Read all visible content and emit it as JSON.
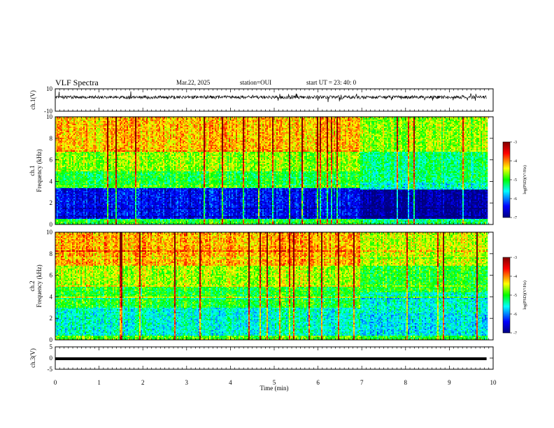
{
  "header": {
    "title": "VLF Spectra",
    "date": "Mar.22, 2025",
    "station": "station=OUI",
    "start": "start UT =  23: 40: 0"
  },
  "chart_data": [
    {
      "type": "line",
      "panel": "ch1-waveform",
      "ylabel": "ch.1(V)",
      "ylim": [
        -10,
        10
      ],
      "yticks": [
        "10",
        "-10"
      ],
      "xlim": [
        0,
        10
      ],
      "baseline": 2.5
    },
    {
      "type": "heatmap",
      "panel": "ch1-spectrogram",
      "ylabel": "ch.1\nFrequency (kHz)",
      "ylim": [
        0,
        10
      ],
      "yticks": [
        "0",
        "2",
        "4",
        "6",
        "8",
        "10"
      ],
      "xlim": [
        0,
        10
      ],
      "data_end_min": 9.85,
      "colorbar": {
        "label": "log(PSD)(V²/Hz)",
        "range": [
          -7,
          -3
        ],
        "ticks": [
          "-3",
          "-4",
          "-5",
          "-6",
          "-7"
        ]
      }
    },
    {
      "type": "heatmap",
      "panel": "ch2-spectrogram",
      "ylabel": "ch.2\nFrequency (kHz)",
      "ylim": [
        0,
        10
      ],
      "yticks": [
        "0",
        "2",
        "4",
        "6",
        "8",
        "10"
      ],
      "xlim": [
        0,
        10
      ],
      "data_end_min": 9.85,
      "colorbar": {
        "label": "log(PSD)(V²/Hz)",
        "range": [
          -7,
          -3
        ],
        "ticks": [
          "-3",
          "-4",
          "-5",
          "-6",
          "-7"
        ]
      }
    },
    {
      "type": "line",
      "panel": "ch3-waveform",
      "ylabel": "ch.3(V)",
      "ylim": [
        -5,
        5
      ],
      "yticks": [
        "5",
        "0",
        "-5"
      ],
      "xlim": [
        0,
        10
      ],
      "baseline": -0.3,
      "xticks": [
        "0",
        "1",
        "2",
        "3",
        "4",
        "5",
        "6",
        "7",
        "8",
        "9",
        "10"
      ],
      "xlabel": "Time (min)"
    }
  ],
  "colors": {
    "spectro_scale": [
      "#000080",
      "#0000ff",
      "#00ffff",
      "#00ff00",
      "#ffff00",
      "#ff0000",
      "#800000"
    ]
  }
}
